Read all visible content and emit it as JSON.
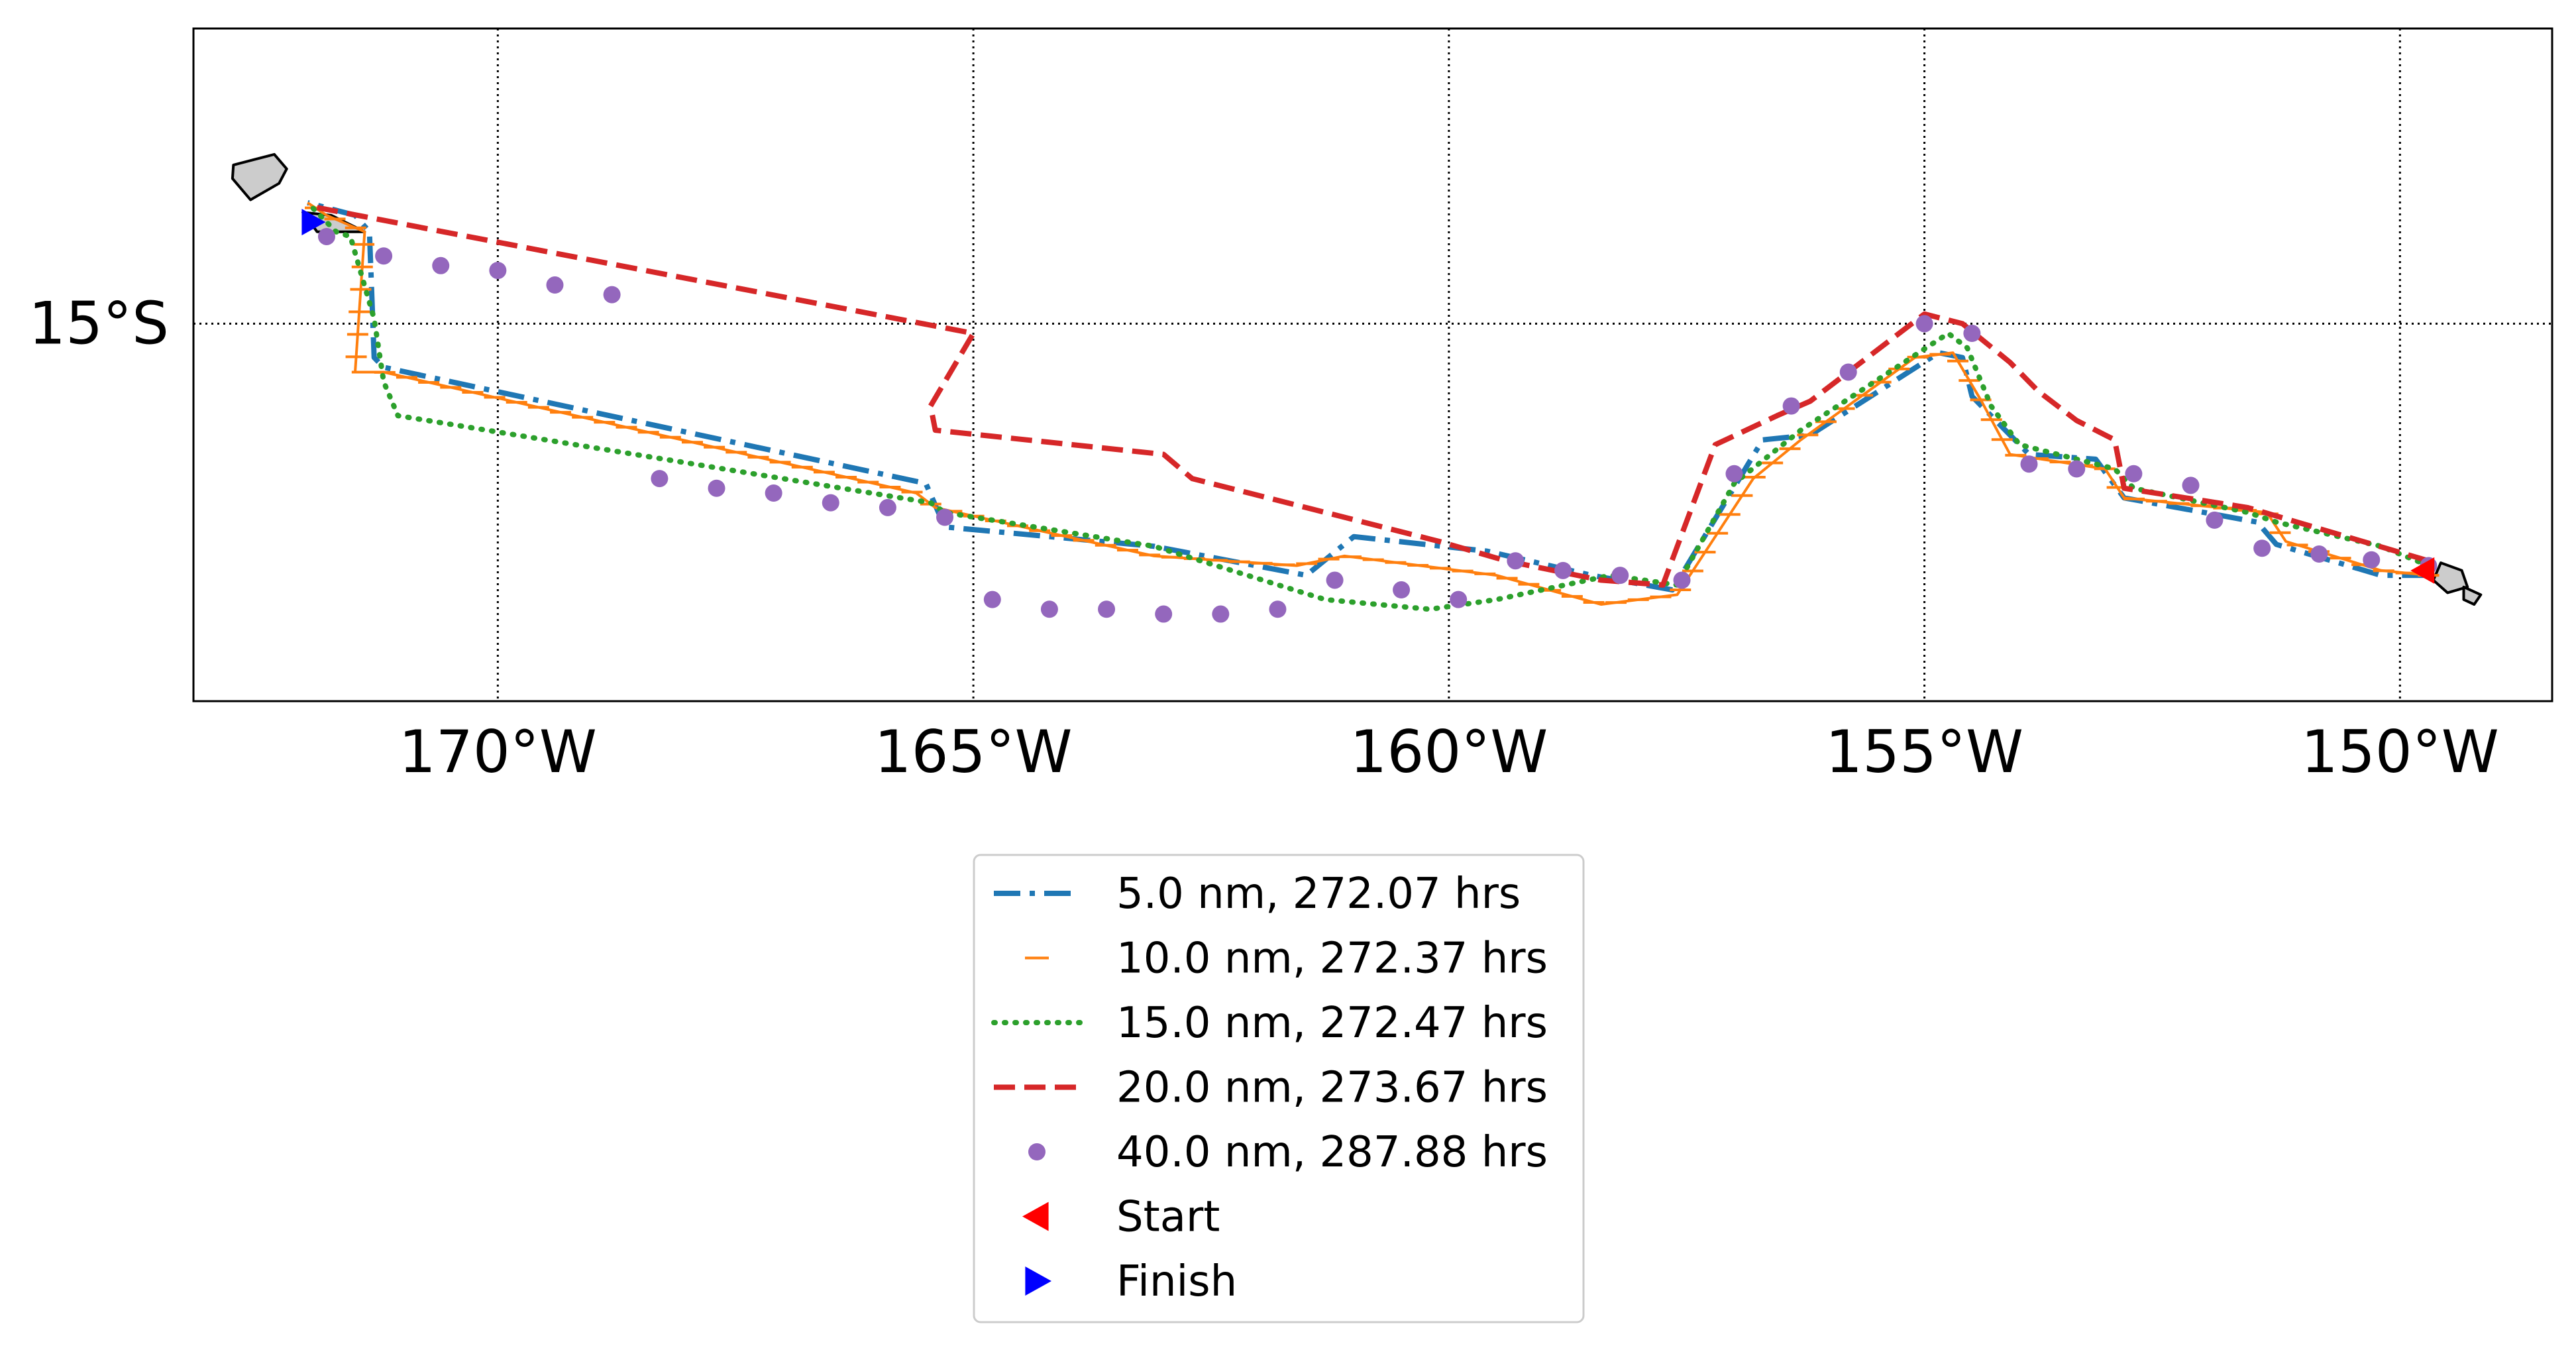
{
  "chart_data": {
    "type": "map-route-plot",
    "projection": "equirectangular",
    "lon_range": [
      -173.2,
      -148.4
    ],
    "lat_range": [
      -18.9,
      -11.95
    ],
    "grid": true,
    "grid_lons": [
      -170,
      -165,
      -160,
      -155,
      -150
    ],
    "grid_lats": [
      -15
    ],
    "x_tick_labels": [
      "170°W",
      "165°W",
      "160°W",
      "155°W",
      "150°W"
    ],
    "y_tick_labels": [
      "15°S"
    ],
    "legend_position": "below-center",
    "islands": [
      {
        "name": "",
        "lonlat": [
          [
            -172.78,
            -13.36
          ],
          [
            -172.35,
            -13.25
          ],
          [
            -172.22,
            -13.4
          ],
          [
            -172.3,
            -13.55
          ],
          [
            -172.6,
            -13.72
          ],
          [
            -172.79,
            -13.5
          ]
        ]
      },
      {
        "name": "",
        "lonlat": [
          [
            -172.05,
            -13.85
          ],
          [
            -171.75,
            -13.88
          ],
          [
            -171.4,
            -14.05
          ],
          [
            -171.9,
            -14.05
          ]
        ]
      },
      {
        "name": "",
        "lonlat": [
          [
            -149.57,
            -17.47
          ],
          [
            -149.35,
            -17.55
          ],
          [
            -149.29,
            -17.72
          ],
          [
            -149.5,
            -17.78
          ],
          [
            -149.65,
            -17.65
          ]
        ]
      },
      {
        "name": "",
        "lonlat": [
          [
            -149.33,
            -17.72
          ],
          [
            -149.15,
            -17.8
          ],
          [
            -149.22,
            -17.9
          ],
          [
            -149.33,
            -17.85
          ]
        ]
      }
    ],
    "series": [
      {
        "name": "5.0 nm, 272.07 hrs",
        "color": "#1f77b4",
        "style": "dashdot",
        "lonlat": [
          [
            -149.7,
            -17.6
          ],
          [
            -150.2,
            -17.6
          ],
          [
            -151.3,
            -17.28
          ],
          [
            -151.5,
            -17.05
          ],
          [
            -152.9,
            -16.8
          ],
          [
            -153.2,
            -16.4
          ],
          [
            -153.9,
            -16.35
          ],
          [
            -154.5,
            -15.75
          ],
          [
            -154.6,
            -15.35
          ],
          [
            -154.85,
            -15.3
          ],
          [
            -156.2,
            -16.15
          ],
          [
            -156.7,
            -16.2
          ],
          [
            -157.65,
            -17.75
          ],
          [
            -158.5,
            -17.6
          ],
          [
            -159.6,
            -17.35
          ],
          [
            -161.0,
            -17.2
          ],
          [
            -161.5,
            -17.6
          ],
          [
            -163.1,
            -17.3
          ],
          [
            -165.3,
            -17.1
          ],
          [
            -165.5,
            -16.65
          ],
          [
            -171.2,
            -15.45
          ],
          [
            -171.3,
            -15.35
          ],
          [
            -171.35,
            -14.05
          ],
          [
            -171.5,
            -13.88
          ],
          [
            -172.0,
            -13.75
          ]
        ]
      },
      {
        "name": "10.0 nm, 272.37 hrs",
        "color": "#ff7f0e",
        "style": "hline-marker",
        "lonlat": [
          [
            -149.7,
            -17.6
          ],
          [
            -150.2,
            -17.55
          ],
          [
            -151.2,
            -17.25
          ],
          [
            -151.4,
            -16.95
          ],
          [
            -152.9,
            -16.8
          ],
          [
            -153.1,
            -16.5
          ],
          [
            -154.1,
            -16.35
          ],
          [
            -154.4,
            -15.8
          ],
          [
            -154.7,
            -15.3
          ],
          [
            -155.1,
            -15.35
          ],
          [
            -156.3,
            -16.2
          ],
          [
            -156.8,
            -16.6
          ],
          [
            -157.6,
            -17.8
          ],
          [
            -158.4,
            -17.9
          ],
          [
            -159.5,
            -17.6
          ],
          [
            -161.1,
            -17.4
          ],
          [
            -161.6,
            -17.5
          ],
          [
            -163.1,
            -17.4
          ],
          [
            -165.4,
            -16.9
          ],
          [
            -165.6,
            -16.75
          ],
          [
            -171.2,
            -15.5
          ],
          [
            -171.5,
            -15.5
          ],
          [
            -171.4,
            -14.05
          ],
          [
            -171.8,
            -13.88
          ],
          [
            -172.0,
            -13.75
          ]
        ]
      },
      {
        "name": "15.0 nm, 272.47 hrs",
        "color": "#2ca02c",
        "style": "dotted",
        "lonlat": [
          [
            -149.7,
            -17.5
          ],
          [
            -150.2,
            -17.3
          ],
          [
            -151.3,
            -17.05
          ],
          [
            -151.6,
            -16.95
          ],
          [
            -152.8,
            -16.7
          ],
          [
            -153.0,
            -16.5
          ],
          [
            -154.0,
            -16.25
          ],
          [
            -154.3,
            -15.85
          ],
          [
            -154.55,
            -15.25
          ],
          [
            -154.75,
            -15.1
          ],
          [
            -156.3,
            -16.1
          ],
          [
            -157.0,
            -16.65
          ],
          [
            -157.6,
            -17.7
          ],
          [
            -158.3,
            -17.6
          ],
          [
            -159.5,
            -17.85
          ],
          [
            -160.2,
            -17.95
          ],
          [
            -161.3,
            -17.85
          ],
          [
            -163.1,
            -17.3
          ],
          [
            -165.3,
            -16.95
          ],
          [
            -165.45,
            -16.85
          ],
          [
            -171.05,
            -15.95
          ],
          [
            -171.2,
            -15.6
          ],
          [
            -171.3,
            -14.95
          ],
          [
            -171.55,
            -14.1
          ],
          [
            -171.7,
            -14.05
          ],
          [
            -172.0,
            -13.75
          ]
        ]
      },
      {
        "name": "20.0 nm, 273.67 hrs",
        "color": "#d62728",
        "style": "dashed",
        "lonlat": [
          [
            -149.7,
            -17.45
          ],
          [
            -151.6,
            -16.9
          ],
          [
            -152.9,
            -16.7
          ],
          [
            -153.0,
            -16.2
          ],
          [
            -153.4,
            -16.0
          ],
          [
            -153.8,
            -15.7
          ],
          [
            -154.1,
            -15.4
          ],
          [
            -154.6,
            -15.0
          ],
          [
            -155.0,
            -14.9
          ],
          [
            -156.2,
            -15.8
          ],
          [
            -156.55,
            -15.95
          ],
          [
            -157.2,
            -16.25
          ],
          [
            -157.75,
            -17.7
          ],
          [
            -158.4,
            -17.65
          ],
          [
            -159.4,
            -17.45
          ],
          [
            -160.1,
            -17.25
          ],
          [
            -162.7,
            -16.6
          ],
          [
            -163.0,
            -16.35
          ],
          [
            -165.4,
            -16.1
          ],
          [
            -165.45,
            -15.85
          ],
          [
            -165.0,
            -15.1
          ],
          [
            -171.9,
            -13.8
          ]
        ]
      },
      {
        "name": "40.0 nm, 287.88 hrs",
        "color": "#9467bd",
        "style": "dots",
        "lonlat": [
          [
            -149.7,
            -17.5
          ],
          [
            -150.3,
            -17.44
          ],
          [
            -150.85,
            -17.38
          ],
          [
            -151.45,
            -17.32
          ],
          [
            -151.95,
            -17.03
          ],
          [
            -152.2,
            -16.67
          ],
          [
            -152.8,
            -16.55
          ],
          [
            -153.4,
            -16.5
          ],
          [
            -153.9,
            -16.45
          ],
          [
            -154.5,
            -15.1
          ],
          [
            -155.0,
            -15.0
          ],
          [
            -155.8,
            -15.5
          ],
          [
            -156.4,
            -15.85
          ],
          [
            -157.0,
            -16.55
          ],
          [
            -157.55,
            -17.65
          ],
          [
            -158.2,
            -17.6
          ],
          [
            -158.8,
            -17.55
          ],
          [
            -159.3,
            -17.45
          ],
          [
            -159.9,
            -17.85
          ],
          [
            -160.5,
            -17.75
          ],
          [
            -161.2,
            -17.65
          ],
          [
            -161.8,
            -17.95
          ],
          [
            -162.4,
            -18.0
          ],
          [
            -163.0,
            -18.0
          ],
          [
            -163.6,
            -17.95
          ],
          [
            -164.2,
            -17.95
          ],
          [
            -164.8,
            -17.85
          ],
          [
            -165.3,
            -17.0
          ],
          [
            -165.9,
            -16.9
          ],
          [
            -166.5,
            -16.85
          ],
          [
            -167.1,
            -16.75
          ],
          [
            -167.7,
            -16.7
          ],
          [
            -168.3,
            -16.6
          ],
          [
            -168.8,
            -14.7
          ],
          [
            -169.4,
            -14.6
          ],
          [
            -170.0,
            -14.45
          ],
          [
            -170.6,
            -14.4
          ],
          [
            -171.2,
            -14.3
          ],
          [
            -171.8,
            -14.1
          ]
        ]
      }
    ],
    "markers": [
      {
        "name": "Start",
        "color": "#ff0000",
        "shape": "triangle-left",
        "lonlat": [
          -149.75,
          -17.55
        ]
      },
      {
        "name": "Finish",
        "color": "#0000ff",
        "shape": "triangle-right",
        "lonlat": [
          -171.95,
          -13.95
        ]
      }
    ]
  },
  "legend": {
    "items": [
      {
        "label": "5.0 nm, 272.07 hrs",
        "color": "#1f77b4",
        "style": "dashdot"
      },
      {
        "label": "10.0 nm, 272.37 hrs",
        "color": "#ff7f0e",
        "style": "hline-marker"
      },
      {
        "label": "15.0 nm, 272.47 hrs",
        "color": "#2ca02c",
        "style": "dotted"
      },
      {
        "label": "20.0 nm, 273.67 hrs",
        "color": "#d62728",
        "style": "dashed"
      },
      {
        "label": "40.0 nm, 287.88 hrs",
        "color": "#9467bd",
        "style": "dots"
      },
      {
        "label": "Start",
        "color": "#ff0000",
        "style": "triangle-left"
      },
      {
        "label": "Finish",
        "color": "#0000ff",
        "style": "triangle-right"
      }
    ]
  }
}
